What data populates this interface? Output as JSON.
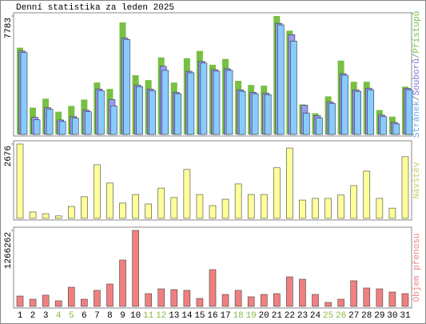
{
  "title": "Denní statistika za leden 2025",
  "categories": [
    "1",
    "2",
    "3",
    "4",
    "5",
    "6",
    "7",
    "8",
    "9",
    "10",
    "11",
    "12",
    "13",
    "14",
    "15",
    "16",
    "17",
    "18",
    "19",
    "20",
    "21",
    "22",
    "23",
    "24",
    "25",
    "26",
    "27",
    "28",
    "29",
    "30",
    "31"
  ],
  "weekend": [
    false,
    false,
    false,
    true,
    true,
    false,
    false,
    false,
    false,
    false,
    true,
    true,
    false,
    false,
    false,
    false,
    false,
    true,
    true,
    false,
    false,
    false,
    false,
    false,
    true,
    true,
    false,
    false,
    false,
    false,
    false
  ],
  "weekend_color": "#88bb44",
  "legend_separator": "/",
  "chart_data": [
    {
      "type": "grouped_bar",
      "ylim": [
        0,
        7783
      ],
      "yticks": [
        7783
      ],
      "series": [
        {
          "name": "Přístupů",
          "color": "#77c043",
          "text_color": "#77c043",
          "values": [
            5700,
            1760,
            2350,
            1490,
            1870,
            2290,
            3410,
            2990,
            7360,
            3890,
            3570,
            5060,
            3410,
            5010,
            5490,
            4580,
            4960,
            3520,
            3250,
            3200,
            7783,
            6820,
            1970,
            1390,
            2500,
            4850,
            3460,
            3460,
            1600,
            1170,
            3140
          ]
        },
        {
          "name": "Souborů",
          "color": "#9a9aee",
          "text_color": "#7777dd",
          "values": [
            5480,
            1120,
            1750,
            950,
            1170,
            1590,
            2980,
            2290,
            6340,
            3240,
            2980,
            4480,
            2770,
            4150,
            4790,
            4260,
            4310,
            2930,
            2770,
            2710,
            7300,
            6560,
            1920,
            1230,
            2130,
            3990,
            2930,
            3040,
            1270,
            790,
            3030
          ]
        },
        {
          "name": "Stránek",
          "color": "#88ccff",
          "text_color": "#66aaee",
          "values": [
            5380,
            960,
            1650,
            850,
            1070,
            1490,
            2880,
            1870,
            6240,
            3140,
            2880,
            4210,
            2670,
            4050,
            4690,
            4160,
            4210,
            2830,
            2670,
            2610,
            7200,
            6130,
            1390,
            1070,
            2030,
            3890,
            2830,
            2930,
            1170,
            690,
            2930
          ]
        }
      ]
    },
    {
      "type": "bar",
      "ylim": [
        0,
        2676
      ],
      "yticks": [
        2676
      ],
      "series": [
        {
          "name": "Návštěv",
          "color": "#ffff99",
          "text_color": "#cccc66",
          "values": [
            2676,
            230,
            170,
            90,
            430,
            780,
            1930,
            1270,
            550,
            860,
            520,
            1090,
            750,
            1760,
            860,
            460,
            690,
            1240,
            860,
            860,
            1820,
            2530,
            660,
            720,
            720,
            840,
            1180,
            1700,
            720,
            370,
            2220
          ]
        }
      ]
    },
    {
      "type": "bar",
      "ylim": [
        0,
        1266262
      ],
      "yticks": [
        1266262
      ],
      "series": [
        {
          "name": "Objem přenosu",
          "color": "#f08080",
          "text_color": "#f08080",
          "values": [
            173000,
            120000,
            187000,
            93000,
            320000,
            120000,
            267000,
            373000,
            773000,
            1266262,
            213000,
            293000,
            280000,
            267000,
            133000,
            613000,
            200000,
            267000,
            160000,
            200000,
            213000,
            493000,
            453000,
            200000,
            67000,
            120000,
            427000,
            307000,
            293000,
            240000,
            213000
          ]
        }
      ]
    }
  ]
}
